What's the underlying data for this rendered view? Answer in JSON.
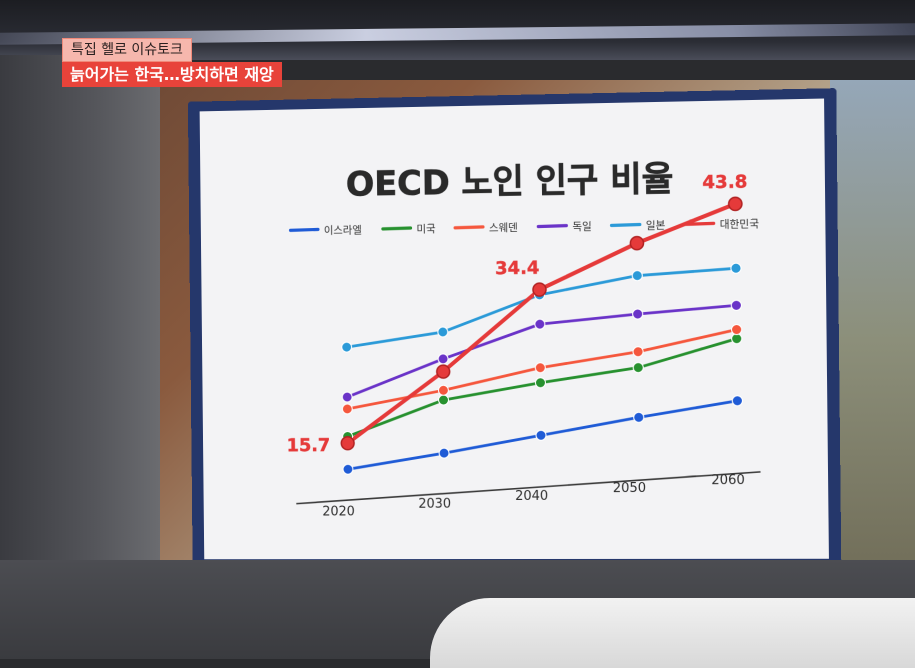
{
  "caption": {
    "program": "특집 헬로 이슈토크",
    "headline": "늙어가는 한국…방치하면 재앙"
  },
  "colors": {
    "israel": "#1f5bd6",
    "usa": "#27912f",
    "sweden": "#f5573d",
    "germany": "#6a33c8",
    "japan": "#2b9ad8",
    "korea": "#e53a3a",
    "board_frame": "#25376b",
    "caption_red": "#e8433a"
  },
  "chart_data": {
    "type": "line",
    "title": "OECD 노인 인구 비율",
    "xlabel": "",
    "ylabel": "",
    "x": [
      "2020",
      "2030",
      "2040",
      "2050",
      "2060"
    ],
    "ylim": [
      10,
      46
    ],
    "grid": false,
    "legend_position": "top",
    "series": [
      {
        "name": "이스라엘",
        "key": "israel",
        "values": [
          12.2,
          13.5,
          15.0,
          16.5,
          17.8
        ]
      },
      {
        "name": "미국",
        "key": "usa",
        "values": [
          16.6,
          20.6,
          22.0,
          23.1,
          26.0
        ]
      },
      {
        "name": "스웨덴",
        "key": "sweden",
        "values": [
          20.3,
          21.9,
          24.0,
          25.2,
          27.2
        ]
      },
      {
        "name": "독일",
        "key": "germany",
        "values": [
          21.9,
          26.1,
          29.8,
          30.2,
          30.4
        ]
      },
      {
        "name": "일본",
        "key": "japan",
        "values": [
          28.6,
          29.7,
          33.7,
          35.3,
          35.3
        ]
      },
      {
        "name": "대한민국",
        "key": "korea",
        "values": [
          15.7,
          24.4,
          34.4,
          39.6,
          43.8
        ]
      }
    ],
    "data_labels": [
      {
        "series": "대한민국",
        "x": "2020",
        "text": "15.7"
      },
      {
        "series": "대한민국",
        "x": "2040",
        "text": "34.4"
      },
      {
        "series": "대한민국",
        "x": "2060",
        "text": "43.8"
      }
    ]
  }
}
